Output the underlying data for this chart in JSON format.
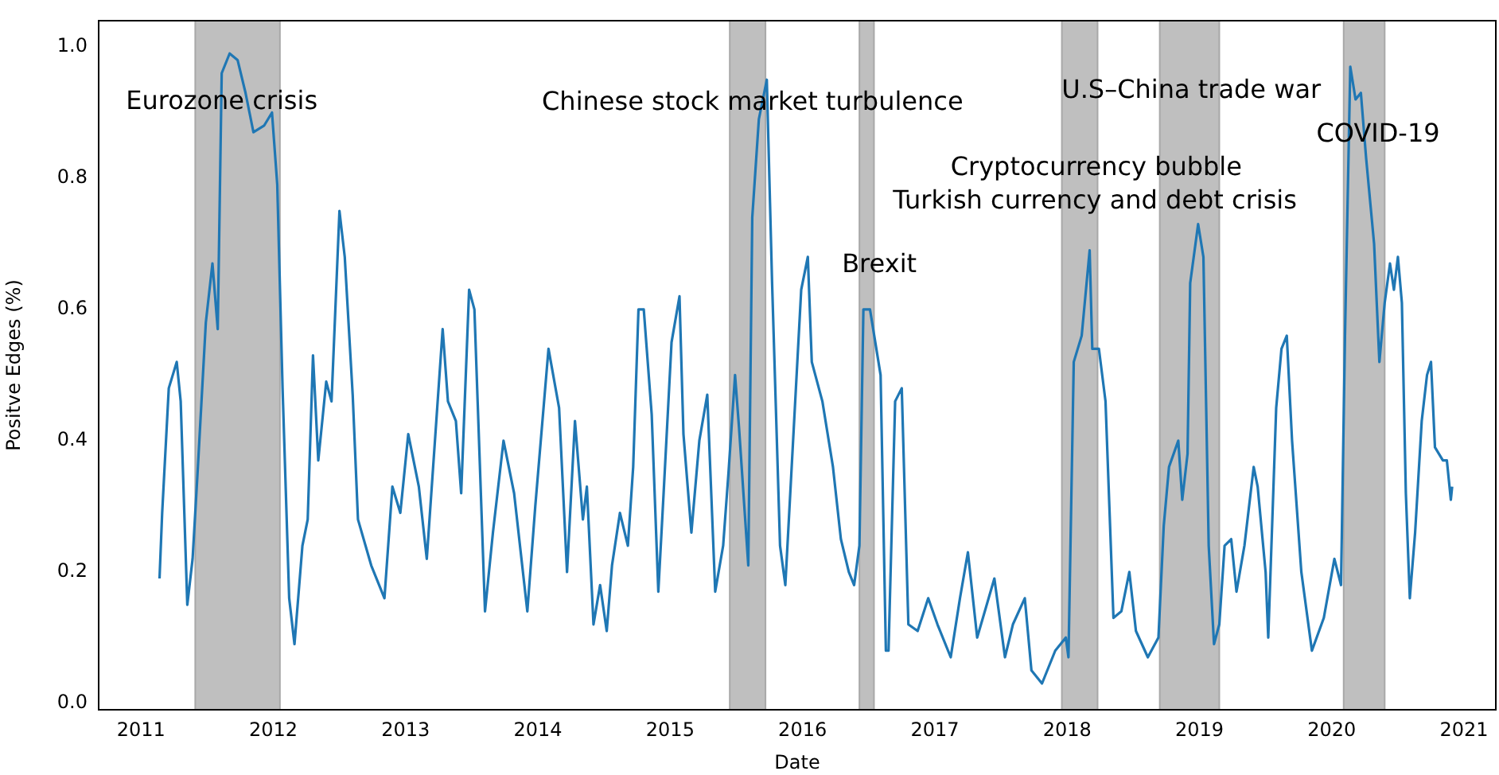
{
  "chart_data": {
    "type": "line",
    "xlabel": "Date",
    "ylabel": "Positve Edges (%)",
    "xlim": [
      2010.68,
      2021.24
    ],
    "ylim": [
      -0.01,
      1.04
    ],
    "xticks": [
      2011,
      2012,
      2013,
      2014,
      2015,
      2016,
      2017,
      2018,
      2019,
      2020,
      2021
    ],
    "yticks": [
      {
        "value": 0,
        "label": "0.0"
      },
      {
        "value": 0.2,
        "label": "0.2"
      },
      {
        "value": 0.4,
        "label": "0.4"
      },
      {
        "value": 0.6,
        "label": "0.6"
      },
      {
        "value": 0.8,
        "label": "0.8"
      },
      {
        "value": 1,
        "label": "1.0"
      }
    ],
    "grid": false,
    "legend": false,
    "marker": "none",
    "line_style": "solid",
    "series": [
      {
        "color": "#1f77b4",
        "x": [
          2011.14,
          2011.16,
          2011.21,
          2011.27,
          2011.3,
          2011.35,
          2011.39,
          2011.43,
          2011.49,
          2011.54,
          2011.58,
          2011.61,
          2011.67,
          2011.73,
          2011.79,
          2011.85,
          2011.93,
          2011.99,
          2012.03,
          2012.07,
          2012.12,
          2012.16,
          2012.22,
          2012.26,
          2012.3,
          2012.34,
          2012.4,
          2012.44,
          2012.5,
          2012.54,
          2012.6,
          2012.64,
          2012.74,
          2012.84,
          2012.9,
          2012.96,
          2013.02,
          2013.1,
          2013.16,
          2013.28,
          2013.32,
          2013.38,
          2013.42,
          2013.48,
          2013.52,
          2013.6,
          2013.66,
          2013.74,
          2013.82,
          2013.92,
          2013.98,
          2014.08,
          2014.16,
          2014.22,
          2014.28,
          2014.34,
          2014.37,
          2014.42,
          2014.47,
          2014.52,
          2014.56,
          2014.62,
          2014.68,
          2014.72,
          2014.76,
          2014.8,
          2014.86,
          2014.91,
          2014.95,
          2015.01,
          2015.07,
          2015.1,
          2015.16,
          2015.22,
          2015.28,
          2015.34,
          2015.4,
          2015.44,
          2015.49,
          2015.52,
          2015.56,
          2015.59,
          2015.62,
          2015.67,
          2015.73,
          2015.77,
          2015.83,
          2015.87,
          2015.95,
          2015.99,
          2016.04,
          2016.07,
          2016.15,
          2016.23,
          2016.29,
          2016.35,
          2016.39,
          2016.43,
          2016.46,
          2016.51,
          2016.59,
          2016.63,
          2016.65,
          2016.7,
          2016.75,
          2016.8,
          2016.87,
          2016.95,
          2017.02,
          2017.12,
          2017.19,
          2017.25,
          2017.32,
          2017.45,
          2017.53,
          2017.59,
          2017.68,
          2017.73,
          2017.81,
          2017.91,
          2017.99,
          2018.01,
          2018.05,
          2018.11,
          2018.17,
          2018.19,
          2018.24,
          2018.29,
          2018.33,
          2018.35,
          2018.41,
          2018.47,
          2018.52,
          2018.61,
          2018.69,
          2018.73,
          2018.77,
          2018.84,
          2018.87,
          2018.91,
          2018.93,
          2018.99,
          2019.03,
          2019.07,
          2019.11,
          2019.15,
          2019.19,
          2019.24,
          2019.28,
          2019.34,
          2019.41,
          2019.44,
          2019.5,
          2019.52,
          2019.58,
          2019.62,
          2019.66,
          2019.7,
          2019.77,
          2019.85,
          2019.94,
          2020.02,
          2020.07,
          2020.1,
          2020.14,
          2020.18,
          2020.22,
          2020.26,
          2020.32,
          2020.36,
          2020.4,
          2020.44,
          2020.47,
          2020.5,
          2020.53,
          2020.56,
          2020.59,
          2020.63,
          2020.68,
          2020.72,
          2020.75,
          2020.78,
          2020.84,
          2020.87,
          2020.9,
          2020.91
        ],
        "values": [
          0.19,
          0.29,
          0.48,
          0.52,
          0.46,
          0.15,
          0.22,
          0.36,
          0.58,
          0.67,
          0.57,
          0.96,
          0.99,
          0.98,
          0.93,
          0.87,
          0.88,
          0.9,
          0.79,
          0.48,
          0.16,
          0.09,
          0.24,
          0.28,
          0.53,
          0.37,
          0.49,
          0.46,
          0.75,
          0.68,
          0.47,
          0.28,
          0.21,
          0.16,
          0.33,
          0.29,
          0.41,
          0.33,
          0.22,
          0.57,
          0.46,
          0.43,
          0.32,
          0.63,
          0.6,
          0.14,
          0.26,
          0.4,
          0.32,
          0.14,
          0.3,
          0.54,
          0.45,
          0.2,
          0.43,
          0.28,
          0.33,
          0.12,
          0.18,
          0.11,
          0.21,
          0.29,
          0.24,
          0.36,
          0.6,
          0.6,
          0.44,
          0.17,
          0.32,
          0.55,
          0.62,
          0.41,
          0.26,
          0.4,
          0.47,
          0.17,
          0.24,
          0.35,
          0.5,
          0.42,
          0.3,
          0.21,
          0.74,
          0.89,
          0.95,
          0.64,
          0.24,
          0.18,
          0.48,
          0.63,
          0.68,
          0.52,
          0.46,
          0.36,
          0.25,
          0.2,
          0.18,
          0.24,
          0.6,
          0.6,
          0.5,
          0.08,
          0.08,
          0.46,
          0.48,
          0.12,
          0.11,
          0.16,
          0.12,
          0.07,
          0.16,
          0.23,
          0.1,
          0.19,
          0.07,
          0.12,
          0.16,
          0.05,
          0.03,
          0.08,
          0.1,
          0.07,
          0.52,
          0.56,
          0.69,
          0.54,
          0.54,
          0.46,
          0.24,
          0.13,
          0.14,
          0.2,
          0.11,
          0.07,
          0.1,
          0.27,
          0.36,
          0.4,
          0.31,
          0.38,
          0.64,
          0.73,
          0.68,
          0.24,
          0.09,
          0.12,
          0.24,
          0.25,
          0.17,
          0.24,
          0.36,
          0.33,
          0.2,
          0.1,
          0.45,
          0.54,
          0.56,
          0.4,
          0.2,
          0.08,
          0.13,
          0.22,
          0.18,
          0.56,
          0.97,
          0.92,
          0.93,
          0.83,
          0.7,
          0.52,
          0.61,
          0.67,
          0.63,
          0.68,
          0.61,
          0.32,
          0.16,
          0.26,
          0.43,
          0.5,
          0.52,
          0.39,
          0.37,
          0.37,
          0.31,
          0.33
        ]
      }
    ],
    "bands": [
      {
        "axis": "x",
        "from": 2011.41,
        "to": 2012.05,
        "color": "#bfbfbf"
      },
      {
        "axis": "x",
        "from": 2015.45,
        "to": 2015.72,
        "color": "#bfbfbf"
      },
      {
        "axis": "x",
        "from": 2016.43,
        "to": 2016.54,
        "color": "#bfbfbf"
      },
      {
        "axis": "x",
        "from": 2017.96,
        "to": 2018.23,
        "color": "#bfbfbf"
      },
      {
        "axis": "x",
        "from": 2018.7,
        "to": 2019.15,
        "color": "#bfbfbf"
      },
      {
        "axis": "x",
        "from": 2020.09,
        "to": 2020.4,
        "color": "#bfbfbf"
      }
    ],
    "annotations": [
      {
        "text": "Eurozone crisis",
        "x": 2011.61,
        "y": 0.915
      },
      "Chinese stock market turbulence",
      {
        "text": "Brexit",
        "x": 2016.58,
        "y": 0.667
      },
      {
        "text": "Cryptocurrency bubble",
        "x": 2018.22,
        "y": 0.815
      },
      {
        "text": "Turkish currency and debt crisis",
        "x": 2018.21,
        "y": 0.764
      },
      "U.S–China trade war",
      {
        "text": "COVID-19",
        "x": 2020.35,
        "y": 0.866
      }
    ]
  }
}
